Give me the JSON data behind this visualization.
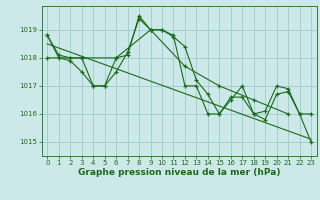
{
  "bg_color": "#cce8e8",
  "line_color": "#1a6b1a",
  "grid_color": "#99cccc",
  "title": "Graphe pression niveau de la mer (hPa)",
  "ylim": [
    1014.5,
    1019.85
  ],
  "xlim": [
    -0.5,
    23.5
  ],
  "yticks": [
    1015,
    1016,
    1017,
    1018,
    1019
  ],
  "xticks": [
    0,
    1,
    2,
    3,
    4,
    5,
    6,
    7,
    8,
    9,
    10,
    11,
    12,
    13,
    14,
    15,
    16,
    17,
    18,
    19,
    20,
    21,
    22,
    23
  ],
  "series1_x": [
    0,
    1,
    2,
    3,
    4,
    5,
    6,
    7,
    8,
    9,
    10,
    11,
    12,
    13,
    14,
    15,
    16,
    17,
    18,
    19,
    20,
    21,
    22,
    23
  ],
  "series1_y": [
    1018.8,
    1018.1,
    1018.0,
    1018.0,
    1017.0,
    1017.0,
    1018.0,
    1018.1,
    1019.5,
    1019.0,
    1019.0,
    1018.8,
    1017.0,
    1017.0,
    1016.0,
    1016.0,
    1016.5,
    1017.0,
    1016.0,
    1016.1,
    1017.0,
    1016.9,
    1016.0,
    1016.0
  ],
  "series2_x": [
    0,
    1,
    2,
    3,
    4,
    5,
    6,
    7,
    8,
    9,
    10,
    11,
    12,
    13,
    14,
    15,
    16,
    17,
    18,
    19,
    20,
    21,
    22,
    23
  ],
  "series2_y": [
    1018.8,
    1018.0,
    1017.9,
    1017.5,
    1017.0,
    1017.0,
    1017.5,
    1018.2,
    1019.4,
    1019.0,
    1019.0,
    1018.75,
    1018.4,
    1017.2,
    1016.7,
    1016.0,
    1016.6,
    1016.6,
    1016.0,
    1015.8,
    1016.7,
    1016.8,
    1016.0,
    1015.0
  ],
  "series3_x": [
    0,
    3,
    6,
    9,
    12,
    15,
    18,
    21
  ],
  "series3_y": [
    1018.0,
    1018.0,
    1018.0,
    1019.0,
    1017.7,
    1017.0,
    1016.5,
    1016.0
  ],
  "trend_x": [
    0,
    23
  ],
  "trend_y": [
    1018.5,
    1015.1
  ]
}
